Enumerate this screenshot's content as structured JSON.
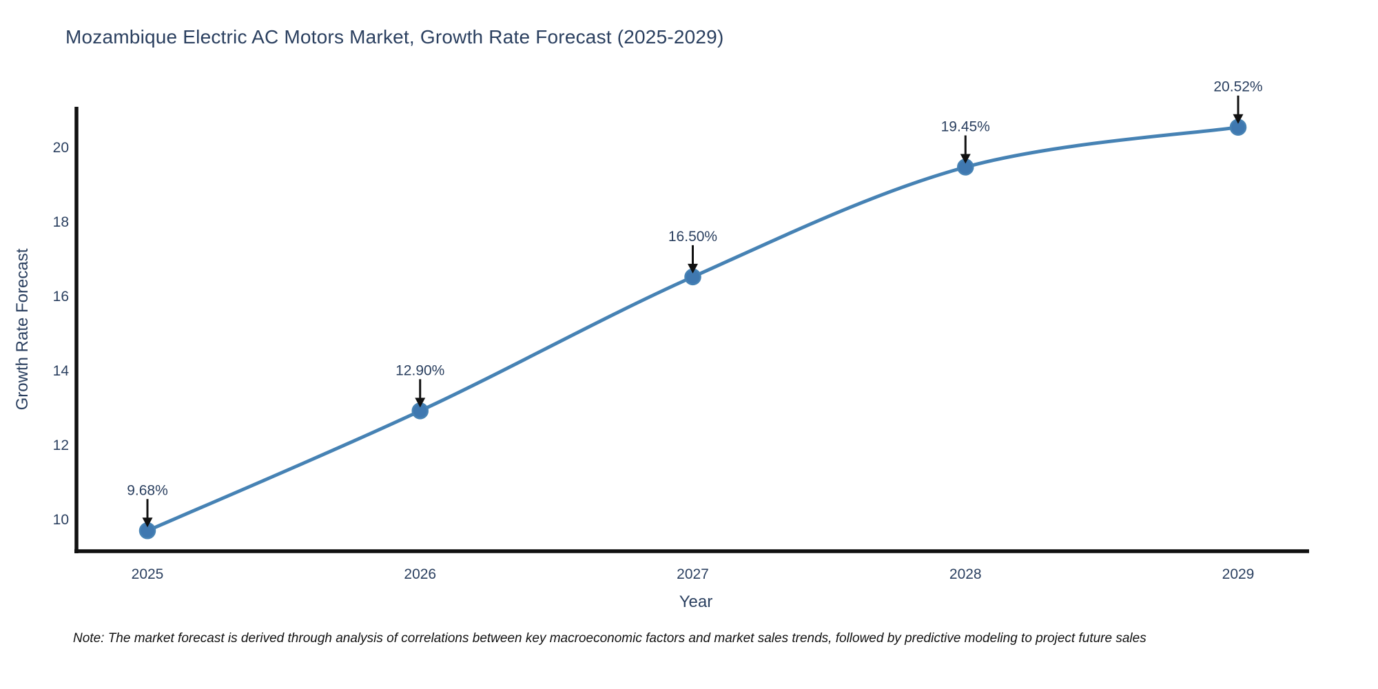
{
  "figure": {
    "note": "Note: The market forecast is derived through analysis of correlations between key macroeconomic factors and market sales trends, followed by predictive modeling to project future sales"
  },
  "chart_data": {
    "type": "line",
    "title": "Mozambique Electric AC Motors Market, Growth Rate Forecast (2025-2029)",
    "xlabel": "Year",
    "ylabel": "Growth Rate Forecast",
    "categories": [
      "2025",
      "2026",
      "2027",
      "2028",
      "2029"
    ],
    "values": [
      9.68,
      12.9,
      16.5,
      19.45,
      20.52
    ],
    "point_labels": [
      "9.68%",
      "12.90%",
      "16.50%",
      "19.45%",
      "20.52%"
    ],
    "yticks": [
      10,
      12,
      14,
      16,
      18,
      20
    ],
    "ylim": [
      9.13,
      21.07
    ],
    "line_shape": "spline",
    "grid": false,
    "legend_position": "none",
    "colors": {
      "line": "#4682b4",
      "marker_fill": "#3f78b0",
      "marker_edge": "#4682b4",
      "arrow": "#111111",
      "spine": "#111111",
      "text": "#2a3f5f",
      "note": "#111111",
      "background": "#ffffff"
    }
  }
}
